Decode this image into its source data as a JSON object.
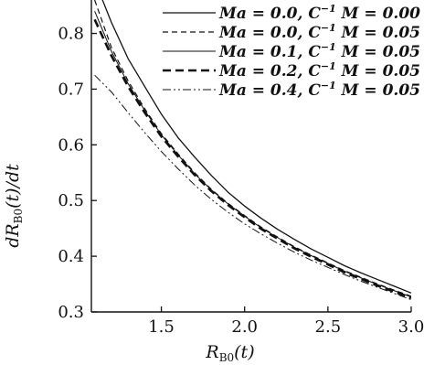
{
  "chart_data": {
    "type": "line",
    "title": "",
    "xlabel": "R_B0(t)",
    "xlabel_display": {
      "main": "R",
      "sub": "B0",
      "suffix": "(t)"
    },
    "ylabel": "dR_B0(t)/dt",
    "ylabel_display": {
      "prefix": "dR",
      "sub": "B0",
      "suffix": "(t)/dt"
    },
    "xlim": [
      1.08,
      3.0
    ],
    "ylim": [
      0.3,
      0.86
    ],
    "xticks": [
      "1.5",
      "2.0",
      "2.5",
      "3.0"
    ],
    "xtick_values": [
      1.5,
      2.0,
      2.5,
      3.0
    ],
    "yticks": [
      "0.3",
      "0.4",
      "0.5",
      "0.6",
      "0.7",
      "0.8"
    ],
    "ytick_values": [
      0.3,
      0.4,
      0.5,
      0.6,
      0.7,
      0.8
    ],
    "grid": false,
    "legend_position": "top-right",
    "series": [
      {
        "name": "Ma = 0.0, C⁻¹M = 0.00",
        "style": "solid",
        "stroke_width": 1.3,
        "x": [
          1.12,
          1.2,
          1.3,
          1.4,
          1.5,
          1.6,
          1.7,
          1.8,
          1.9,
          2.0,
          2.1,
          2.2,
          2.3,
          2.4,
          2.5,
          2.6,
          2.7,
          2.8,
          2.9,
          3.0
        ],
        "y": [
          0.88,
          0.82,
          0.755,
          0.705,
          0.655,
          0.613,
          0.578,
          0.545,
          0.515,
          0.49,
          0.468,
          0.448,
          0.43,
          0.413,
          0.398,
          0.383,
          0.37,
          0.358,
          0.346,
          0.334
        ]
      },
      {
        "name": "Ma = 0.0, C⁻¹M = 0.05",
        "style": "dashed",
        "stroke_width": 1.2,
        "x": [
          1.1,
          1.2,
          1.3,
          1.4,
          1.5,
          1.6,
          1.7,
          1.8,
          1.9,
          2.0,
          2.1,
          2.2,
          2.3,
          2.4,
          2.5,
          2.6,
          2.7,
          2.8,
          2.9,
          3.0
        ],
        "y": [
          0.86,
          0.775,
          0.715,
          0.665,
          0.62,
          0.584,
          0.55,
          0.52,
          0.495,
          0.473,
          0.452,
          0.434,
          0.417,
          0.402,
          0.388,
          0.374,
          0.362,
          0.35,
          0.339,
          0.328
        ]
      },
      {
        "name": "Ma = 0.1, C⁻¹M = 0.05",
        "style": "solid",
        "stroke_width": 1.0,
        "x": [
          1.1,
          1.2,
          1.3,
          1.4,
          1.5,
          1.6,
          1.7,
          1.8,
          1.9,
          2.0,
          2.1,
          2.2,
          2.3,
          2.4,
          2.5,
          2.6,
          2.7,
          2.8,
          2.9,
          3.0
        ],
        "y": [
          0.84,
          0.768,
          0.71,
          0.662,
          0.618,
          0.582,
          0.548,
          0.519,
          0.494,
          0.472,
          0.451,
          0.433,
          0.416,
          0.401,
          0.387,
          0.373,
          0.361,
          0.349,
          0.338,
          0.327
        ]
      },
      {
        "name": "Ma = 0.2, C⁻¹M = 0.05",
        "style": "bold-dashed",
        "stroke_width": 2.6,
        "x": [
          1.1,
          1.2,
          1.3,
          1.4,
          1.5,
          1.6,
          1.7,
          1.8,
          1.9,
          2.0,
          2.1,
          2.2,
          2.3,
          2.4,
          2.5,
          2.6,
          2.7,
          2.8,
          2.9,
          3.0
        ],
        "y": [
          0.825,
          0.76,
          0.705,
          0.658,
          0.615,
          0.579,
          0.546,
          0.517,
          0.492,
          0.47,
          0.449,
          0.431,
          0.414,
          0.399,
          0.385,
          0.371,
          0.359,
          0.347,
          0.336,
          0.325
        ]
      },
      {
        "name": "Ma = 0.4, C⁻¹M = 0.05",
        "style": "dash-dot-dot",
        "stroke_width": 1.0,
        "x": [
          1.1,
          1.2,
          1.3,
          1.4,
          1.5,
          1.6,
          1.7,
          1.8,
          1.9,
          2.0,
          2.1,
          2.2,
          2.3,
          2.4,
          2.5,
          2.6,
          2.7,
          2.8,
          2.9,
          3.0
        ],
        "y": [
          0.725,
          0.695,
          0.658,
          0.622,
          0.588,
          0.557,
          0.528,
          0.502,
          0.479,
          0.458,
          0.44,
          0.423,
          0.407,
          0.393,
          0.38,
          0.367,
          0.355,
          0.344,
          0.333,
          0.322
        ]
      }
    ],
    "legend_entries": [
      {
        "ma_label": "Ma",
        "ma_value": "0.0",
        "c_label": "C",
        "c_exp": "−1",
        "m_label": "M",
        "m_value": "0.00"
      },
      {
        "ma_label": "Ma",
        "ma_value": "0.0",
        "c_label": "C",
        "c_exp": "−1",
        "m_label": "M",
        "m_value": "0.05"
      },
      {
        "ma_label": "Ma",
        "ma_value": "0.1",
        "c_label": "C",
        "c_exp": "−1",
        "m_label": "M",
        "m_value": "0.05"
      },
      {
        "ma_label": "Ma",
        "ma_value": "0.2",
        "c_label": "C",
        "c_exp": "−1",
        "m_label": "M",
        "m_value": "0.05"
      },
      {
        "ma_label": "Ma",
        "ma_value": "0.4",
        "c_label": "C",
        "c_exp": "−1",
        "m_label": "M",
        "m_value": "0.05"
      }
    ]
  }
}
